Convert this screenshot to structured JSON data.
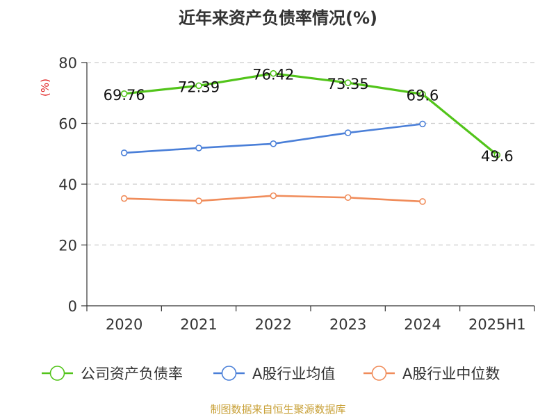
{
  "source_note": "制图数据来自恒生聚源数据库",
  "colors": {
    "series": [
      "#52c41a",
      "#4a7fd8",
      "#f08c5a"
    ],
    "unit_label": "#e02020",
    "axis": "#333333",
    "grid": "#cccccc",
    "source": "#c8a036"
  },
  "chart_data": {
    "type": "line",
    "title": "近年来资产负债率情况(%)",
    "ylabel": "(%)",
    "xlabel": "",
    "ylim": [
      0,
      80
    ],
    "yticks": [
      "0",
      "20",
      "40",
      "60",
      "80"
    ],
    "categories": [
      "2020",
      "2021",
      "2022",
      "2023",
      "2024",
      "2025H1"
    ],
    "grid": true,
    "legend_position": "bottom",
    "series": [
      {
        "name": "公司资产负债率",
        "values": [
          69.76,
          72.39,
          76.42,
          73.35,
          69.6,
          49.6
        ],
        "labels": [
          "69.76",
          "72.39",
          "76.42",
          "73.35",
          "69.6",
          "49.6"
        ]
      },
      {
        "name": "A股行业均值",
        "values": [
          50.3,
          51.9,
          53.3,
          56.9,
          59.8,
          null
        ]
      },
      {
        "name": "A股行业中位数",
        "values": [
          35.3,
          34.5,
          36.2,
          35.6,
          34.3,
          null
        ]
      }
    ]
  }
}
